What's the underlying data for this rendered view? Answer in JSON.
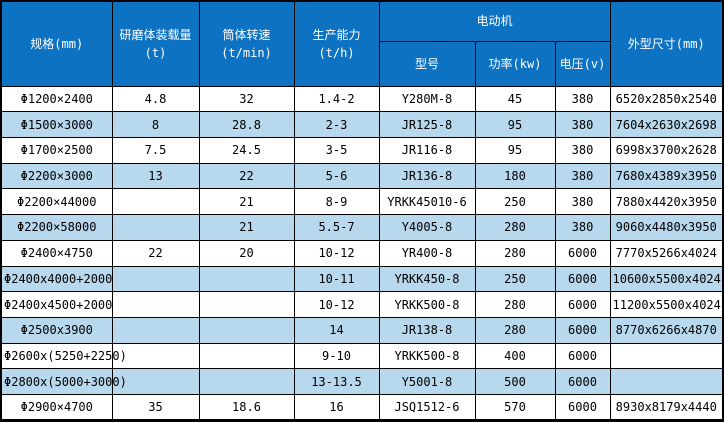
{
  "table": {
    "headers": {
      "spec": "规格(mm)",
      "grinding_load": "研磨体装载量(t)",
      "rotation_speed": "筒体转速(t/min)",
      "capacity": "生产能力(t/h)",
      "motor_group": "电动机",
      "motor_model": "型号",
      "motor_power": "功率(kw)",
      "motor_voltage": "电压(v)",
      "dimensions": "外型尺寸(mm)"
    },
    "rows": [
      [
        "Φ1200×2400",
        "4.8",
        "32",
        "1.4-2",
        "Y280M-8",
        "45",
        "380",
        "6520x2850x2540"
      ],
      [
        "Φ1500×3000",
        "8",
        "28.8",
        "2-3",
        "JR125-8",
        "95",
        "380",
        "7604x2630x2698"
      ],
      [
        "Φ1700×2500",
        "7.5",
        "24.5",
        "3-5",
        "JR116-8",
        "95",
        "380",
        "6998x3700x2628"
      ],
      [
        "Φ2200×3000",
        "13",
        "22",
        "5-6",
        "JR136-8",
        "180",
        "380",
        "7680x4389x3950"
      ],
      [
        "Φ2200×44000",
        "",
        "21",
        "8-9",
        "YRKK45010-6",
        "250",
        "380",
        "7880x4420x3950"
      ],
      [
        "Φ2200×58000",
        "",
        "21",
        "5.5-7",
        "Y4005-8",
        "280",
        "380",
        "9060x4480x3950"
      ],
      [
        "Φ2400×4750",
        "22",
        "20",
        "10-12",
        "YR400-8",
        "280",
        "6000",
        "7770x5266x4024"
      ],
      [
        "Φ2400x4000+2000",
        "",
        "",
        "10-11",
        "YRKK450-8",
        "250",
        "6000",
        "10600x5500x4024"
      ],
      [
        "Φ2400x4500+2000",
        "",
        "",
        "10-12",
        "YRKK500-8",
        "280",
        "6000",
        "11200x5500x4024"
      ],
      [
        "Φ2500x3900",
        "",
        "",
        "14",
        "JR138-8",
        "280",
        "6000",
        "8770x6266x4870"
      ],
      [
        "Φ2600x(5250+2250)",
        "",
        "",
        "9-10",
        "YRKK500-8",
        "400",
        "6000",
        ""
      ],
      [
        "Φ2800x(5000+3000)",
        "",
        "",
        "13-13.5",
        "Y5001-8",
        "500",
        "6000",
        ""
      ],
      [
        "Φ2900×4700",
        "35",
        "18.6",
        "16",
        "JSQ1512-6",
        "570",
        "6000",
        "8930x8179x4440"
      ]
    ],
    "colors": {
      "header_bg": "#0e72c2",
      "stripe_bg": "#b8d8ee",
      "border": "#000000",
      "header_text": "#ffffff",
      "cell_text": "#000000"
    }
  }
}
